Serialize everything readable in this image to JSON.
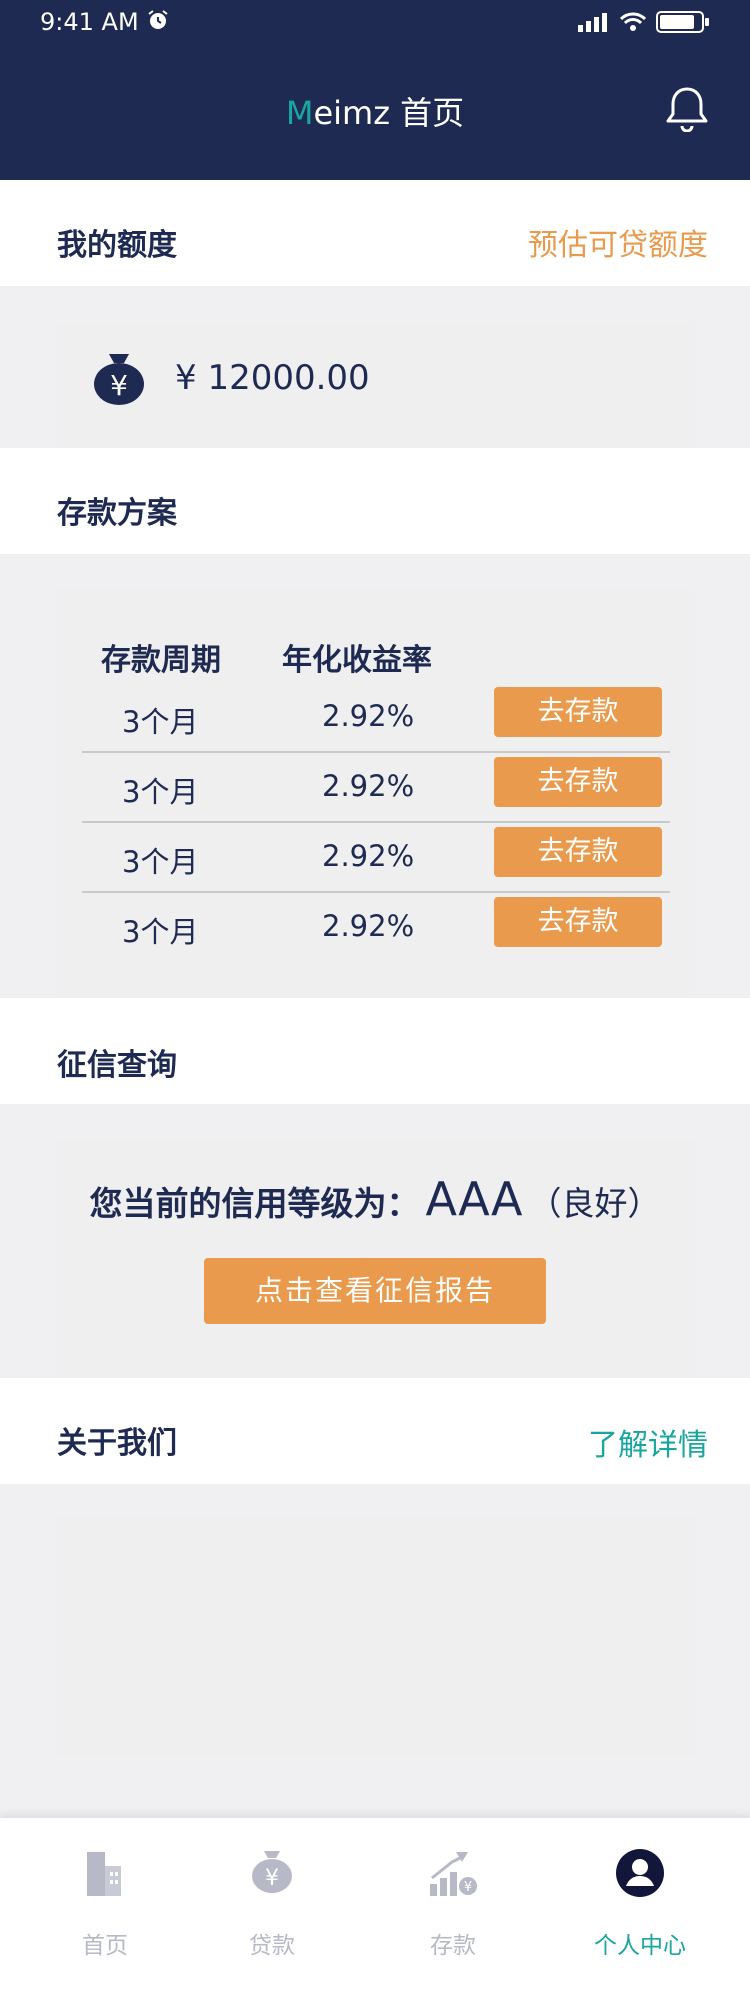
{
  "status_bar": {
    "time": "9:41 AM"
  },
  "header": {
    "title_first": "M",
    "title_rest": "eimz 首页"
  },
  "quota": {
    "title": "我的额度",
    "link": "预估可贷额度",
    "amount": "¥ 12000.00"
  },
  "deposit": {
    "title": "存款方案",
    "headers": [
      "存款周期",
      "年化收益率"
    ],
    "rows": [
      {
        "period": "3个月",
        "rate": "2.92%",
        "button": "去存款"
      },
      {
        "period": "3个月",
        "rate": "2.92%",
        "button": "去存款"
      },
      {
        "period": "3个月",
        "rate": "2.92%",
        "button": "去存款"
      },
      {
        "period": "3个月",
        "rate": "2.92%",
        "button": "去存款"
      }
    ]
  },
  "credit": {
    "title": "征信查询",
    "prefix": "您当前的信用等级为：",
    "grade": "AAA",
    "quality": "（良好）",
    "button": "点击查看征信报告"
  },
  "about": {
    "title": "关于我们",
    "link": "了解详情"
  },
  "tabs": [
    {
      "label": "首页",
      "icon": "building-icon"
    },
    {
      "label": "贷款",
      "icon": "moneybag-icon"
    },
    {
      "label": "存款",
      "icon": "growth-chart-icon"
    },
    {
      "label": "个人中心",
      "icon": "user-icon"
    }
  ],
  "colors": {
    "navy": "#1e2a52",
    "teal": "#1aa59f",
    "orange": "#e99a4d",
    "tab_inactive": "#b7b9c7"
  }
}
